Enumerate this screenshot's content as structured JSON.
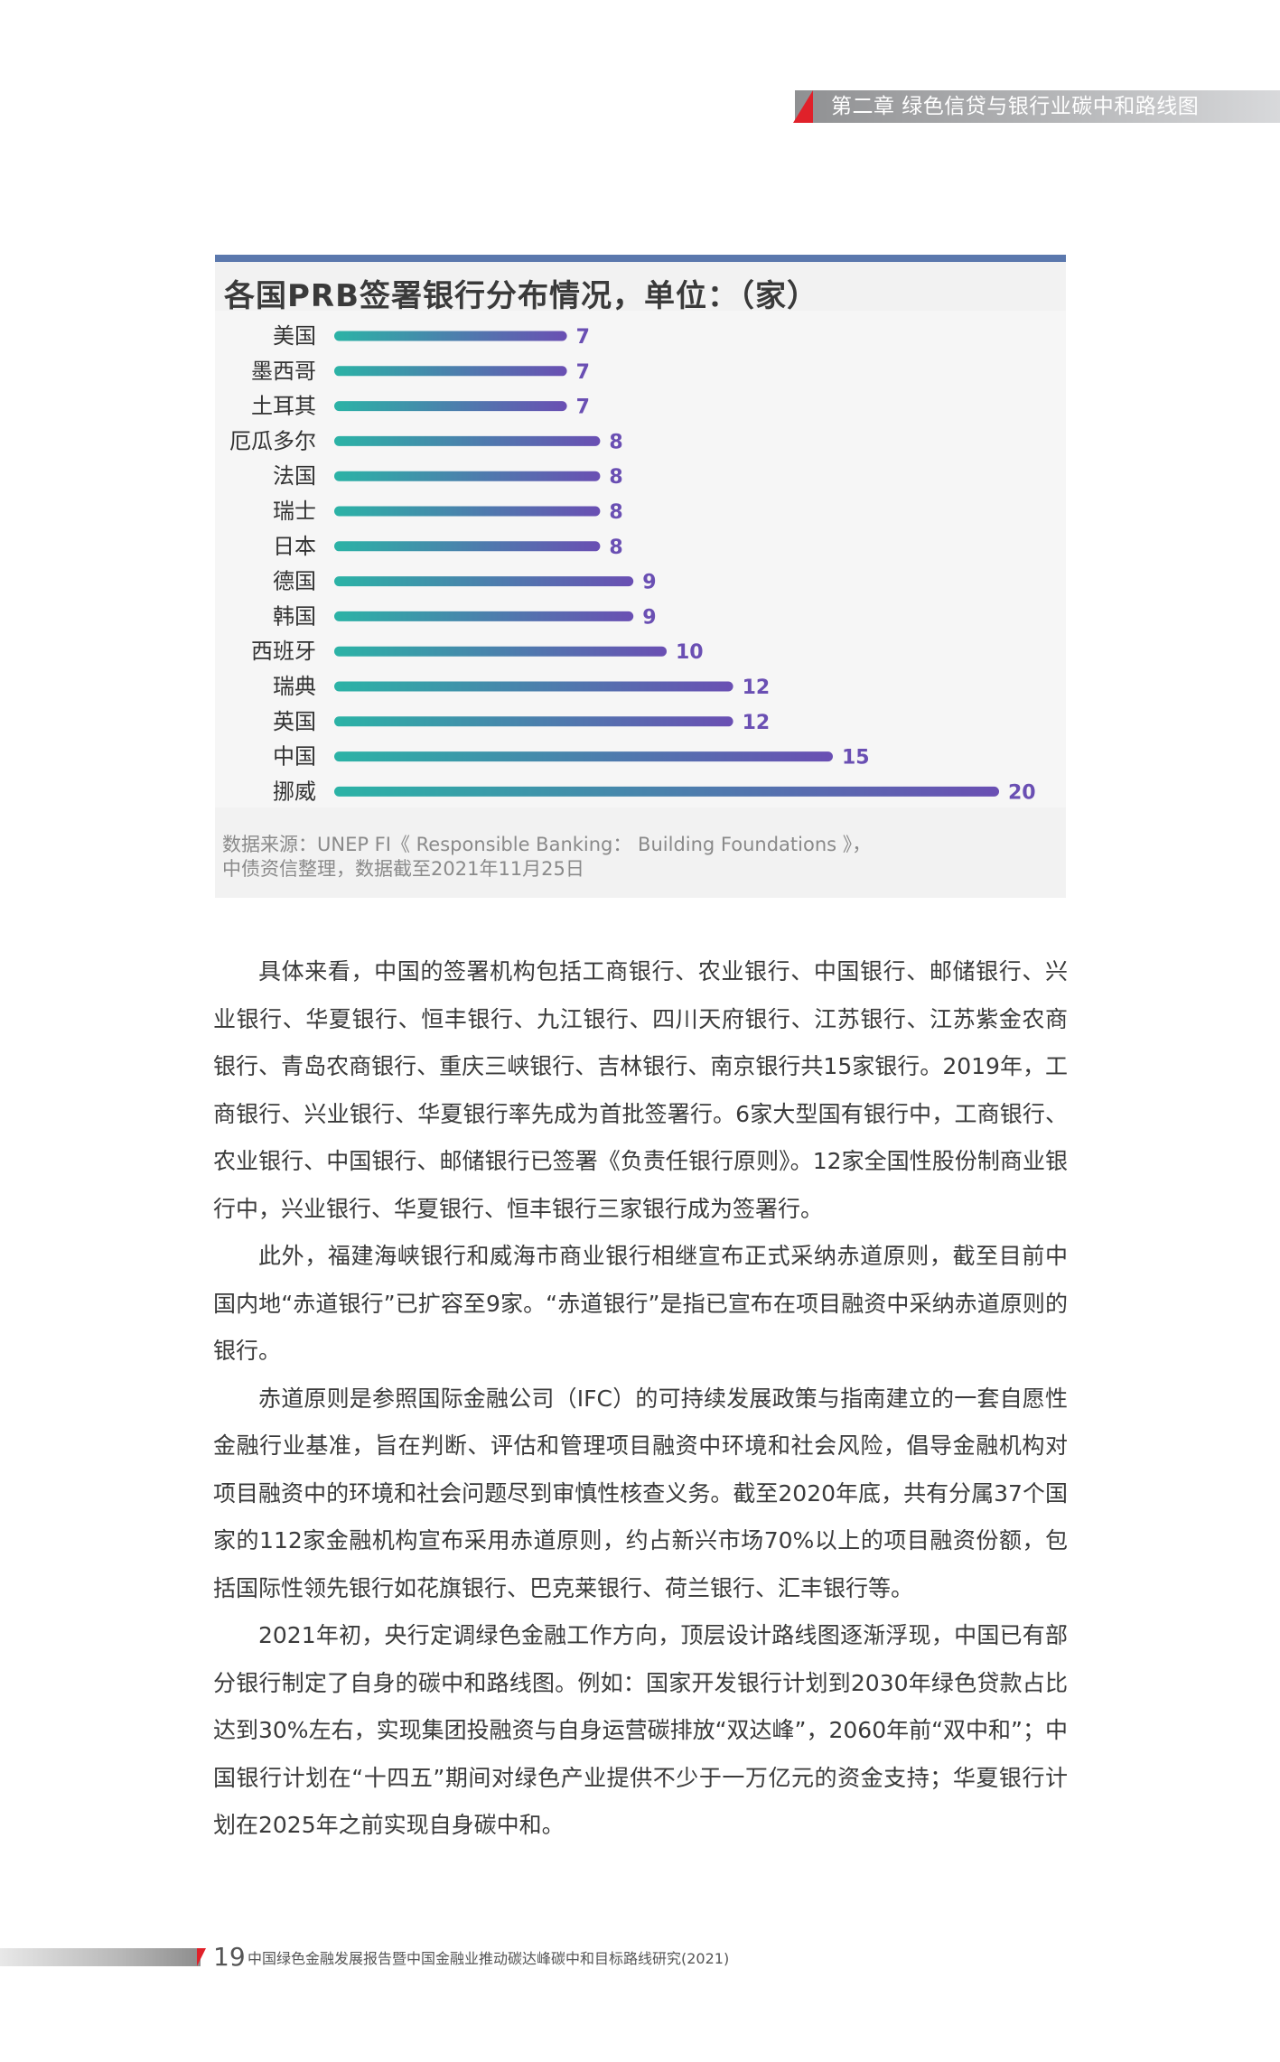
{
  "header": {
    "chapter_title": "第二章  绿色信贷与银行业碳中和路线图"
  },
  "chart": {
    "title": "各国PRB签署银行分布情况，单位：（家）",
    "source_line1": "数据来源：UNEP FI《 Responsible Banking： Building Foundations 》，",
    "source_line2": "中债资信整理，数据截至2021年11月25日"
  },
  "chart_data": {
    "type": "bar",
    "orientation": "horizontal",
    "title": "各国PRB签署银行分布情况，单位：（家）",
    "categories": [
      "美国",
      "墨西哥",
      "土耳其",
      "厄瓜多尔",
      "法国",
      "瑞士",
      "日本",
      "德国",
      "韩国",
      "西班牙",
      "瑞典",
      "英国",
      "中国",
      "挪威"
    ],
    "values": [
      7,
      7,
      7,
      8,
      8,
      8,
      8,
      9,
      9,
      10,
      12,
      12,
      15,
      20
    ],
    "bar_gradient": [
      "#2bb3a6",
      "#6a4fb3"
    ],
    "value_label_color": "#6a4fb3",
    "grid": false,
    "legend": "none"
  },
  "body": {
    "paragraphs": [
      "具体来看，中国的签署机构包括工商银行、农业银行、中国银行、邮储银行、兴业银行、华夏银行、恒丰银行、九江银行、四川天府银行、江苏银行、江苏紫金农商银行、青岛农商银行、重庆三峡银行、吉林银行、南京银行共15家银行。2019年，工商银行、兴业银行、华夏银行率先成为首批签署行。6家大型国有银行中，工商银行、农业银行、中国银行、邮储银行已签署《负责任银行原则》。12家全国性股份制商业银行中，兴业银行、华夏银行、恒丰银行三家银行成为签署行。",
      "此外，福建海峡银行和威海市商业银行相继宣布正式采纳赤道原则，截至目前中国内地“赤道银行”已扩容至9家。“赤道银行”是指已宣布在项目融资中采纳赤道原则的银行。",
      "赤道原则是参照国际金融公司（IFC）的可持续发展政策与指南建立的一套自愿性金融行业基准，旨在判断、评估和管理项目融资中环境和社会风险，倡导金融机构对项目融资中的环境和社会问题尽到审慎性核查义务。截至2020年底，共有分属37个国家的112家金融机构宣布采用赤道原则，约占新兴市场70%以上的项目融资份额，包括国际性领先银行如花旗银行、巴克莱银行、荷兰银行、汇丰银行等。",
      "2021年初，央行定调绿色金融工作方向，顶层设计路线图逐渐浮现，中国已有部分银行制定了自身的碳中和路线图。例如：国家开发银行计划到2030年绿色贷款占比达到30%左右，实现集团投融资与自身运营碳排放“双达峰”，2060年前“双中和”；中国银行计划在“十四五”期间对绿色产业提供不少于一万亿元的资金支持；华夏银行计划在2025年之前实现自身碳中和。"
    ]
  },
  "footer": {
    "page_number": "19",
    "publication_title": "中国绿色金融发展报告暨中国金融业推动碳达峰碳中和目标路线研究(2021)"
  }
}
